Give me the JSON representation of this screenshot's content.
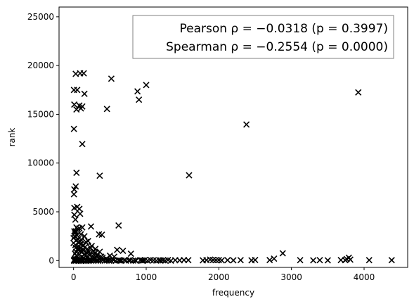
{
  "chart_data": {
    "type": "scatter",
    "title": "",
    "xlabel": "frequency",
    "ylabel": "rank",
    "xlim": [
      -200,
      4600
    ],
    "ylim": [
      -700,
      26000
    ],
    "xticks": [
      0,
      1000,
      2000,
      3000,
      4000
    ],
    "yticks": [
      0,
      5000,
      10000,
      15000,
      20000,
      25000
    ],
    "grid": false,
    "legend": "none",
    "marker": "x",
    "marker_color": "#000000",
    "annotation": {
      "line1": "Pearson ρ = −0.0318 (p = 0.3997)",
      "line2": "Spearman ρ = −0.2554 (p = 0.0000)",
      "placement": "top-right"
    },
    "points": [
      [
        30,
        19150
      ],
      [
        90,
        19200
      ],
      [
        140,
        19200
      ],
      [
        520,
        18650
      ],
      [
        1000,
        18000
      ],
      [
        880,
        17350
      ],
      [
        3920,
        17250
      ],
      [
        5,
        17500
      ],
      [
        50,
        17500
      ],
      [
        150,
        17100
      ],
      [
        900,
        16500
      ],
      [
        10,
        16000
      ],
      [
        80,
        15900
      ],
      [
        120,
        15800
      ],
      [
        460,
        15550
      ],
      [
        40,
        15500
      ],
      [
        100,
        15600
      ],
      [
        2380,
        13950
      ],
      [
        5,
        13500
      ],
      [
        120,
        11950
      ],
      [
        40,
        9000
      ],
      [
        360,
        8700
      ],
      [
        1590,
        8750
      ],
      [
        30,
        7600
      ],
      [
        10,
        7300
      ],
      [
        5,
        6800
      ],
      [
        50,
        5500
      ],
      [
        80,
        5300
      ],
      [
        10,
        5400
      ],
      [
        10,
        4700
      ],
      [
        90,
        4800
      ],
      [
        25,
        4200
      ],
      [
        620,
        3600
      ],
      [
        40,
        3400
      ],
      [
        60,
        3200
      ],
      [
        80,
        3300
      ],
      [
        120,
        3400
      ],
      [
        240,
        3500
      ],
      [
        10,
        3000
      ],
      [
        20,
        2800
      ],
      [
        30,
        3000
      ],
      [
        50,
        2600
      ],
      [
        100,
        2700
      ],
      [
        150,
        2500
      ],
      [
        200,
        2000
      ],
      [
        350,
        2700
      ],
      [
        390,
        2650
      ],
      [
        40,
        2100
      ],
      [
        70,
        1800
      ],
      [
        100,
        1700
      ],
      [
        130,
        1500
      ],
      [
        160,
        1400
      ],
      [
        250,
        1500
      ],
      [
        300,
        1200
      ],
      [
        30,
        1300
      ],
      [
        60,
        1100
      ],
      [
        90,
        1000
      ],
      [
        120,
        900
      ],
      [
        180,
        800
      ],
      [
        220,
        700
      ],
      [
        280,
        600
      ],
      [
        320,
        500
      ],
      [
        20,
        700
      ],
      [
        40,
        500
      ],
      [
        80,
        600
      ],
      [
        110,
        400
      ],
      [
        140,
        300
      ],
      [
        200,
        350
      ],
      [
        260,
        250
      ],
      [
        300,
        200
      ],
      [
        350,
        150
      ],
      [
        400,
        300
      ],
      [
        450,
        200
      ],
      [
        500,
        500
      ],
      [
        560,
        400
      ],
      [
        600,
        1100
      ],
      [
        680,
        1000
      ],
      [
        790,
        700
      ],
      [
        10,
        100
      ],
      [
        20,
        200
      ],
      [
        50,
        150
      ],
      [
        70,
        100
      ],
      [
        90,
        80
      ],
      [
        150,
        100
      ],
      [
        180,
        60
      ],
      [
        230,
        50
      ],
      [
        400,
        50
      ],
      [
        480,
        80
      ],
      [
        550,
        40
      ],
      [
        620,
        30
      ],
      [
        700,
        50
      ],
      [
        780,
        40
      ],
      [
        850,
        30
      ],
      [
        920,
        50
      ],
      [
        980,
        40
      ],
      [
        1060,
        60
      ],
      [
        1100,
        30
      ],
      [
        1180,
        40
      ],
      [
        1230,
        30
      ],
      [
        1300,
        50
      ],
      [
        1400,
        40
      ],
      [
        1460,
        30
      ],
      [
        1520,
        50
      ],
      [
        1580,
        40
      ],
      [
        1780,
        30
      ],
      [
        1830,
        40
      ],
      [
        1880,
        100
      ],
      [
        1920,
        60
      ],
      [
        1960,
        40
      ],
      [
        2000,
        50
      ],
      [
        2040,
        30
      ],
      [
        2120,
        40
      ],
      [
        2200,
        30
      ],
      [
        2300,
        40
      ],
      [
        2450,
        30
      ],
      [
        2500,
        60
      ],
      [
        2700,
        50
      ],
      [
        2760,
        200
      ],
      [
        2880,
        750
      ],
      [
        3120,
        40
      ],
      [
        3300,
        30
      ],
      [
        3390,
        40
      ],
      [
        3500,
        30
      ],
      [
        3680,
        50
      ],
      [
        3740,
        40
      ],
      [
        3760,
        150
      ],
      [
        3790,
        300
      ],
      [
        3810,
        100
      ],
      [
        4070,
        40
      ],
      [
        4380,
        40
      ],
      [
        5,
        0
      ],
      [
        10,
        -30
      ],
      [
        25,
        30
      ],
      [
        35,
        -20
      ],
      [
        45,
        50
      ],
      [
        60,
        0
      ],
      [
        75,
        -10
      ],
      [
        95,
        20
      ],
      [
        105,
        -40
      ],
      [
        115,
        10
      ],
      [
        135,
        0
      ],
      [
        165,
        -20
      ],
      [
        195,
        10
      ],
      [
        215,
        0
      ],
      [
        245,
        -10
      ],
      [
        270,
        20
      ],
      [
        310,
        0
      ],
      [
        340,
        -20
      ],
      [
        370,
        10
      ],
      [
        430,
        0
      ],
      [
        460,
        20
      ],
      [
        490,
        -10
      ],
      [
        520,
        0
      ],
      [
        580,
        -20
      ],
      [
        640,
        10
      ],
      [
        660,
        0
      ],
      [
        720,
        -10
      ],
      [
        760,
        20
      ],
      [
        820,
        0
      ],
      [
        860,
        -20
      ],
      [
        940,
        10
      ],
      [
        960,
        0
      ],
      [
        1020,
        -10
      ],
      [
        1140,
        0
      ],
      [
        1200,
        10
      ],
      [
        1260,
        0
      ],
      [
        1340,
        -10
      ],
      [
        0,
        1800
      ],
      [
        0,
        2300
      ],
      [
        15,
        2500
      ],
      [
        25,
        1600
      ],
      [
        35,
        900
      ],
      [
        55,
        1200
      ],
      [
        65,
        2200
      ],
      [
        85,
        2000
      ],
      [
        95,
        1300
      ],
      [
        110,
        2100
      ],
      [
        125,
        1100
      ],
      [
        145,
        600
      ],
      [
        170,
        1900
      ],
      [
        190,
        1200
      ],
      [
        210,
        900
      ],
      [
        235,
        1300
      ],
      [
        275,
        900
      ],
      [
        295,
        800
      ],
      [
        330,
        600
      ],
      [
        360,
        900
      ],
      [
        380,
        400
      ]
    ]
  }
}
